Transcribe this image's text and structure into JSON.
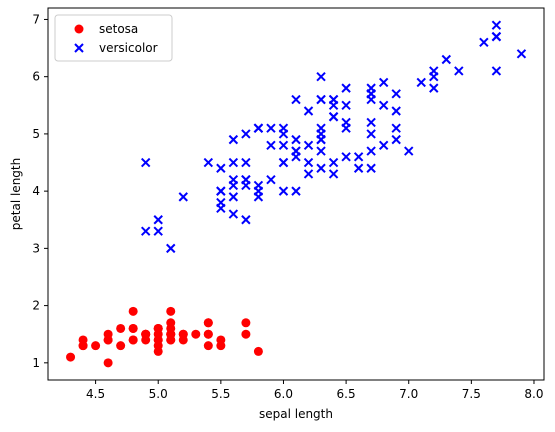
{
  "chart_data": {
    "type": "scatter",
    "xlabel": "sepal length",
    "ylabel": "petal length",
    "xlim": [
      4.12,
      8.08
    ],
    "ylim": [
      0.7,
      7.2
    ],
    "xticks": [
      4.5,
      5.0,
      5.5,
      6.0,
      6.5,
      7.0,
      7.5,
      8.0
    ],
    "xtick_labels": [
      "4.5",
      "5.0",
      "5.5",
      "6.0",
      "6.5",
      "7.0",
      "7.5",
      "8.0"
    ],
    "yticks": [
      1,
      2,
      3,
      4,
      5,
      6,
      7
    ],
    "ytick_labels": [
      "1",
      "2",
      "3",
      "4",
      "5",
      "6",
      "7"
    ],
    "grid": false,
    "legend_position": "top-left",
    "series": [
      {
        "name": "setosa",
        "marker": "circle",
        "color": "#ff0000",
        "x": [
          5.1,
          4.9,
          4.7,
          4.6,
          5.0,
          5.4,
          4.6,
          5.0,
          4.4,
          4.9,
          5.4,
          4.8,
          4.8,
          4.3,
          5.8,
          5.7,
          5.4,
          5.1,
          5.7,
          5.1,
          5.4,
          5.1,
          4.6,
          5.1,
          4.8,
          5.0,
          5.0,
          5.2,
          5.2,
          4.7,
          4.8,
          5.4,
          5.2,
          5.5,
          4.9,
          5.0,
          5.5,
          4.9,
          4.4,
          5.1,
          5.0,
          4.5,
          4.4,
          5.0,
          5.1,
          4.8,
          5.1,
          4.6,
          5.3,
          5.0
        ],
        "y": [
          1.4,
          1.4,
          1.3,
          1.5,
          1.4,
          1.7,
          1.4,
          1.5,
          1.4,
          1.5,
          1.5,
          1.6,
          1.4,
          1.1,
          1.2,
          1.5,
          1.3,
          1.4,
          1.7,
          1.5,
          1.7,
          1.5,
          1.0,
          1.7,
          1.9,
          1.6,
          1.6,
          1.5,
          1.4,
          1.6,
          1.6,
          1.5,
          1.5,
          1.4,
          1.5,
          1.2,
          1.3,
          1.5,
          1.3,
          1.5,
          1.3,
          1.3,
          1.3,
          1.6,
          1.9,
          1.4,
          1.6,
          1.4,
          1.5,
          1.4
        ]
      },
      {
        "name": "versicolor",
        "marker": "x",
        "color": "#0000ff",
        "x": [
          7.0,
          6.4,
          6.9,
          5.5,
          6.5,
          5.7,
          6.3,
          4.9,
          6.6,
          5.2,
          5.0,
          5.9,
          6.0,
          6.1,
          5.6,
          6.7,
          5.6,
          5.8,
          6.2,
          5.6,
          5.9,
          6.1,
          6.3,
          6.1,
          6.4,
          6.6,
          6.8,
          6.7,
          6.0,
          5.7,
          5.5,
          5.5,
          5.8,
          6.0,
          5.4,
          6.0,
          6.7,
          6.3,
          5.6,
          5.5,
          5.5,
          6.1,
          5.8,
          5.0,
          5.6,
          5.7,
          5.7,
          6.2,
          5.1,
          5.7,
          6.3,
          5.8,
          7.1,
          6.3,
          6.5,
          7.6,
          4.9,
          7.3,
          6.7,
          7.2,
          6.5,
          6.4,
          6.8,
          5.7,
          5.8,
          6.4,
          6.5,
          7.7,
          7.7,
          6.0,
          6.9,
          5.6,
          7.7,
          6.3,
          6.7,
          7.2,
          6.2,
          6.1,
          6.4,
          7.2,
          7.4,
          7.9,
          6.4,
          6.3,
          6.1,
          7.7,
          6.3,
          6.4,
          6.0,
          6.9,
          6.7,
          6.9,
          5.8,
          6.8,
          6.7,
          6.7,
          6.3,
          6.5,
          6.2,
          5.9
        ],
        "y": [
          4.7,
          4.5,
          4.9,
          4.0,
          4.6,
          4.5,
          4.7,
          3.3,
          4.6,
          3.9,
          3.5,
          4.2,
          4.0,
          4.7,
          3.6,
          4.4,
          4.5,
          4.1,
          4.5,
          3.9,
          4.8,
          4.0,
          4.9,
          4.7,
          4.3,
          4.4,
          4.8,
          5.0,
          4.5,
          3.5,
          3.8,
          3.7,
          3.9,
          5.1,
          4.5,
          4.5,
          4.7,
          4.4,
          4.1,
          4.0,
          4.4,
          4.6,
          4.0,
          3.3,
          4.2,
          4.2,
          4.2,
          4.3,
          3.0,
          4.1,
          6.0,
          5.1,
          5.9,
          5.6,
          5.8,
          6.6,
          4.5,
          6.3,
          5.8,
          6.1,
          5.1,
          5.3,
          5.5,
          5.0,
          5.1,
          5.3,
          5.5,
          6.7,
          6.9,
          5.0,
          5.7,
          4.9,
          6.7,
          4.9,
          5.7,
          6.0,
          4.8,
          4.9,
          5.6,
          5.8,
          6.1,
          6.4,
          5.6,
          5.1,
          5.6,
          6.1,
          5.6,
          5.5,
          4.8,
          5.4,
          5.6,
          5.1,
          5.1,
          5.9,
          5.7,
          5.2,
          5.0,
          5.2,
          5.4,
          5.1
        ]
      }
    ]
  }
}
